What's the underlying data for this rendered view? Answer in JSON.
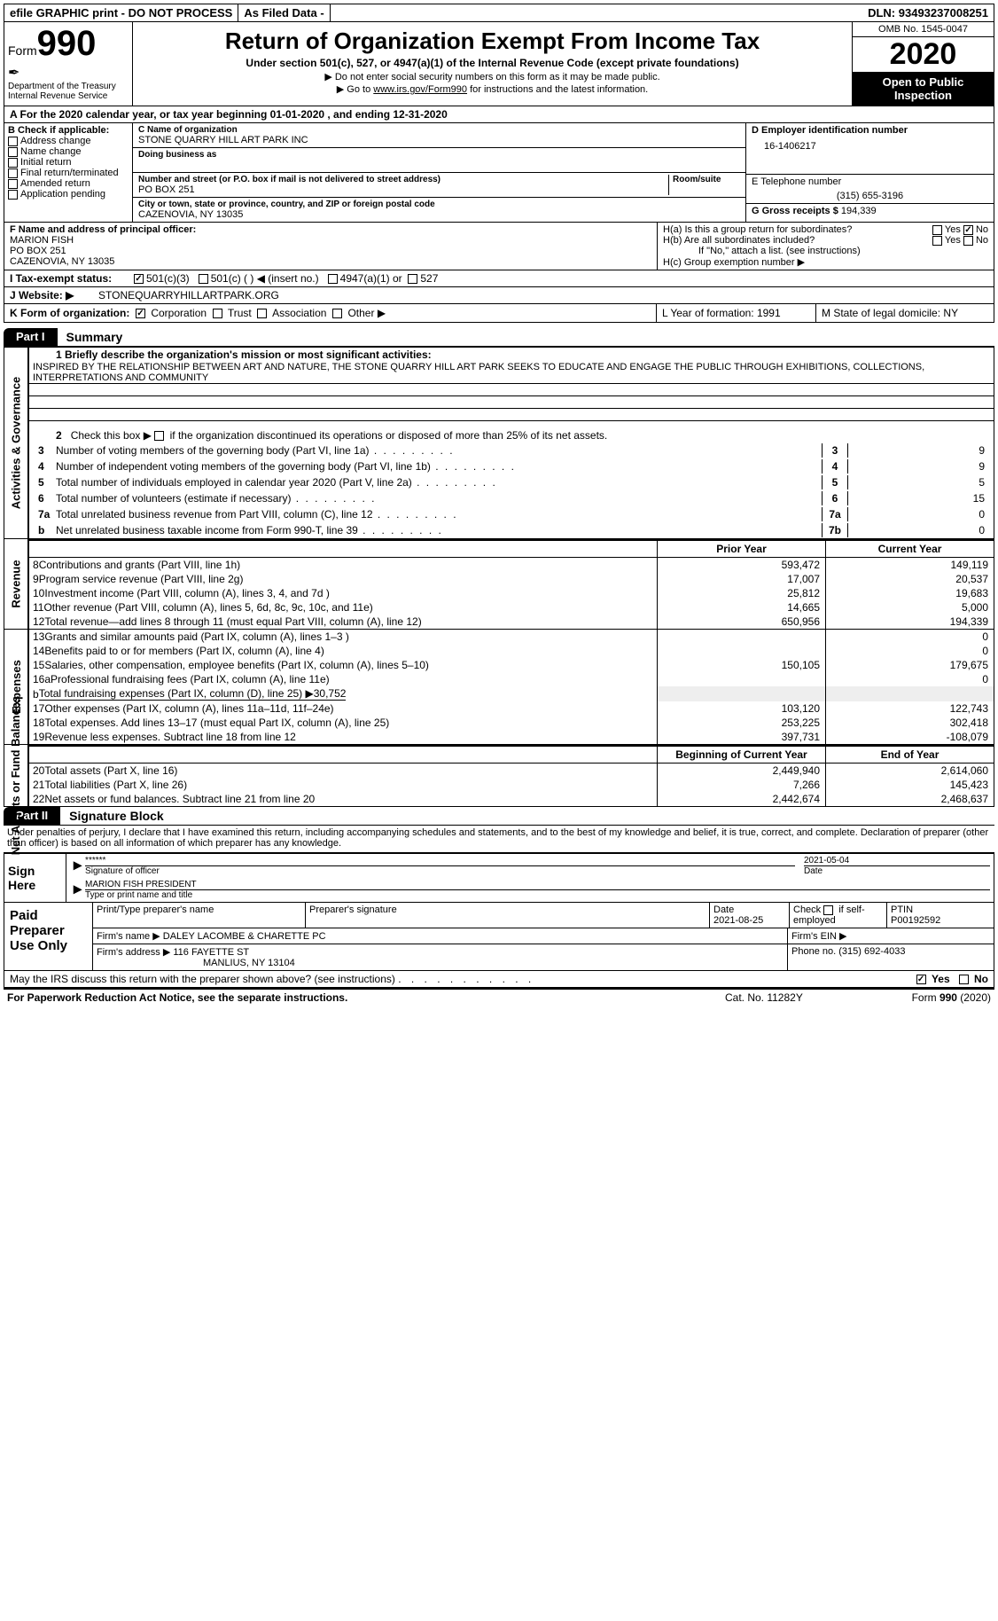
{
  "topbar": {
    "efile": "efile GRAPHIC print - DO NOT PROCESS",
    "asfiled": "As Filed Data -",
    "dln_label": "DLN:",
    "dln": "93493237008251"
  },
  "header": {
    "form_label": "Form",
    "form_num": "990",
    "dept": "Department of the Treasury",
    "irs": "Internal Revenue Service",
    "title": "Return of Organization Exempt From Income Tax",
    "sub1": "Under section 501(c), 527, or 4947(a)(1) of the Internal Revenue Code (except private foundations)",
    "sub2": "▶ Do not enter social security numbers on this form as it may be made public.",
    "sub3_pre": "▶ Go to ",
    "sub3_link": "www.irs.gov/Form990",
    "sub3_post": " for instructions and the latest information.",
    "omb": "OMB No. 1545-0047",
    "year": "2020",
    "open": "Open to Public Inspection"
  },
  "rowA": "A   For the 2020 calendar year, or tax year beginning 01-01-2020   , and ending 12-31-2020",
  "colB": {
    "title": "B Check if applicable:",
    "items": [
      "Address change",
      "Name change",
      "Initial return",
      "Final return/terminated",
      "Amended return",
      "Application pending"
    ]
  },
  "orgbox": {
    "c_label": "C Name of organization",
    "c_name": "STONE QUARRY HILL ART PARK INC",
    "dba_label": "Doing business as",
    "addr_label": "Number and street (or P.O. box if mail is not delivered to street address)",
    "room_label": "Room/suite",
    "addr": "PO BOX 251",
    "city_label": "City or town, state or province, country, and ZIP or foreign postal code",
    "city": "CAZENOVIA, NY  13035"
  },
  "colD": {
    "d_label": "D Employer identification number",
    "d_val": "16-1406217",
    "e_label": "E Telephone number",
    "e_val": "(315) 655-3196",
    "g_label": "G Gross receipts $",
    "g_val": "194,339"
  },
  "rowF": {
    "f_label": "F  Name and address of principal officer:",
    "f_name": "MARION FISH",
    "f_addr1": "PO BOX 251",
    "f_addr2": "CAZENOVIA, NY  13035",
    "ha": "H(a)  Is this a group return for subordinates?",
    "hb": "H(b)  Are all subordinates included?",
    "hb_note": "If \"No,\" attach a list. (see instructions)",
    "hc": "H(c)  Group exemption number ▶",
    "yes": "Yes",
    "no": "No"
  },
  "rowI": {
    "label": "I   Tax-exempt status:",
    "o1": "501(c)(3)",
    "o2": "501(c) (   ) ◀ (insert no.)",
    "o3": "4947(a)(1) or",
    "o4": "527"
  },
  "rowJ": {
    "label": "J   Website: ▶",
    "val": "STONEQUARRYHILLARTPARK.ORG"
  },
  "rowK": {
    "label": "K Form of organization:",
    "o1": "Corporation",
    "o2": "Trust",
    "o3": "Association",
    "o4": "Other ▶",
    "L": "L Year of formation: 1991",
    "M": "M State of legal domicile: NY"
  },
  "part1": {
    "tab": "Part I",
    "title": "Summary"
  },
  "mission": {
    "label": "1 Briefly describe the organization's mission or most significant activities:",
    "text": "INSPIRED BY THE RELATIONSHIP BETWEEN ART AND NATURE, THE STONE QUARRY HILL ART PARK SEEKS TO EDUCATE AND ENGAGE THE PUBLIC THROUGH EXHIBITIONS, COLLECTIONS, INTERPRETATIONS AND COMMUNITY"
  },
  "line2": "2   Check this box ▶        if the organization discontinued its operations or disposed of more than 25% of its net assets.",
  "govlines": [
    {
      "n": "3",
      "d": "Number of voting members of the governing body (Part VI, line 1a)",
      "k": "3",
      "v": "9"
    },
    {
      "n": "4",
      "d": "Number of independent voting members of the governing body (Part VI, line 1b)",
      "k": "4",
      "v": "9"
    },
    {
      "n": "5",
      "d": "Total number of individuals employed in calendar year 2020 (Part V, line 2a)",
      "k": "5",
      "v": "5"
    },
    {
      "n": "6",
      "d": "Total number of volunteers (estimate if necessary)",
      "k": "6",
      "v": "15"
    },
    {
      "n": "7a",
      "d": "Total unrelated business revenue from Part VIII, column (C), line 12",
      "k": "7a",
      "v": "0"
    },
    {
      "n": "b",
      "d": "Net unrelated business taxable income from Form 990-T, line 39",
      "k": "7b",
      "v": "0"
    }
  ],
  "col_heads": {
    "prior": "Prior Year",
    "current": "Current Year"
  },
  "revenue": [
    {
      "n": "8",
      "d": "Contributions and grants (Part VIII, line 1h)",
      "p": "593,472",
      "c": "149,119"
    },
    {
      "n": "9",
      "d": "Program service revenue (Part VIII, line 2g)",
      "p": "17,007",
      "c": "20,537"
    },
    {
      "n": "10",
      "d": "Investment income (Part VIII, column (A), lines 3, 4, and 7d )",
      "p": "25,812",
      "c": "19,683"
    },
    {
      "n": "11",
      "d": "Other revenue (Part VIII, column (A), lines 5, 6d, 8c, 9c, 10c, and 11e)",
      "p": "14,665",
      "c": "5,000"
    },
    {
      "n": "12",
      "d": "Total revenue—add lines 8 through 11 (must equal Part VIII, column (A), line 12)",
      "p": "650,956",
      "c": "194,339"
    }
  ],
  "expenses": [
    {
      "n": "13",
      "d": "Grants and similar amounts paid (Part IX, column (A), lines 1–3 )",
      "p": "",
      "c": "0"
    },
    {
      "n": "14",
      "d": "Benefits paid to or for members (Part IX, column (A), line 4)",
      "p": "",
      "c": "0"
    },
    {
      "n": "15",
      "d": "Salaries, other compensation, employee benefits (Part IX, column (A), lines 5–10)",
      "p": "150,105",
      "c": "179,675"
    },
    {
      "n": "16a",
      "d": "Professional fundraising fees (Part IX, column (A), line 11e)",
      "p": "",
      "c": "0"
    },
    {
      "n": "b",
      "d": "Total fundraising expenses (Part IX, column (D), line 25) ▶30,752",
      "p": "",
      "c": "",
      "noval": true
    },
    {
      "n": "17",
      "d": "Other expenses (Part IX, column (A), lines 11a–11d, 11f–24e)",
      "p": "103,120",
      "c": "122,743"
    },
    {
      "n": "18",
      "d": "Total expenses. Add lines 13–17 (must equal Part IX, column (A), line 25)",
      "p": "253,225",
      "c": "302,418"
    },
    {
      "n": "19",
      "d": "Revenue less expenses. Subtract line 18 from line 12",
      "p": "397,731",
      "c": "-108,079"
    }
  ],
  "net_heads": {
    "begin": "Beginning of Current Year",
    "end": "End of Year"
  },
  "netassets": [
    {
      "n": "20",
      "d": "Total assets (Part X, line 16)",
      "p": "2,449,940",
      "c": "2,614,060"
    },
    {
      "n": "21",
      "d": "Total liabilities (Part X, line 26)",
      "p": "7,266",
      "c": "145,423"
    },
    {
      "n": "22",
      "d": "Net assets or fund balances. Subtract line 21 from line 20",
      "p": "2,442,674",
      "c": "2,468,637"
    }
  ],
  "sides": {
    "gov": "Activities & Governance",
    "rev": "Revenue",
    "exp": "Expenses",
    "net": "Net Assets or Fund Balances"
  },
  "part2": {
    "tab": "Part II",
    "title": "Signature Block"
  },
  "sig": {
    "perjury": "Under penalties of perjury, I declare that I have examined this return, including accompanying schedules and statements, and to the best of my knowledge and belief, it is true, correct, and complete. Declaration of preparer (other than officer) is based on all information of which preparer has any knowledge.",
    "sign_here": "Sign Here",
    "stars": "******",
    "sig_label": "Signature of officer",
    "date1": "2021-05-04",
    "date_label": "Date",
    "name": "MARION FISH PRESIDENT",
    "name_label": "Type or print name and title"
  },
  "preparer": {
    "title": "Paid Preparer Use Only",
    "h1": "Print/Type preparer's name",
    "h2": "Preparer's signature",
    "h3": "Date",
    "date": "2021-08-25",
    "h4_pre": "Check",
    "h4_post": "if self-employed",
    "h5": "PTIN",
    "ptin": "P00192592",
    "firm_name_l": "Firm's name     ▶",
    "firm_name": "DALEY LACOMBE & CHARETTE PC",
    "firm_ein_l": "Firm's EIN ▶",
    "firm_addr_l": "Firm's address ▶",
    "firm_addr1": "116 FAYETTE ST",
    "firm_addr2": "MANLIUS, NY  13104",
    "phone_l": "Phone no.",
    "phone": "(315) 692-4033"
  },
  "discuss": "May the IRS discuss this return with the preparer shown above? (see instructions)",
  "footer": {
    "left": "For Paperwork Reduction Act Notice, see the separate instructions.",
    "mid": "Cat. No. 11282Y",
    "right_pre": "Form ",
    "right_num": "990",
    "right_post": " (2020)"
  }
}
